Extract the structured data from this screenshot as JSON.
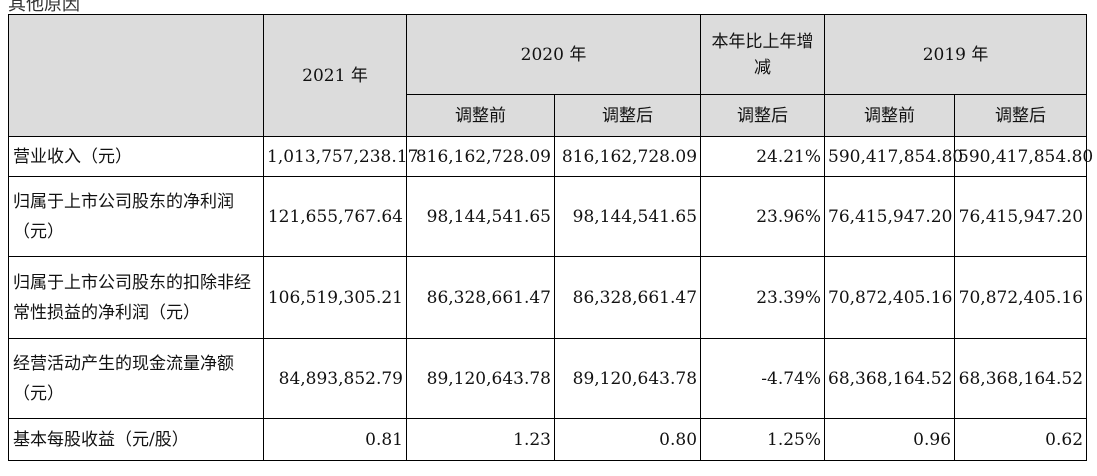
{
  "caption": "其他原因",
  "header": {
    "y2021": "2021 年",
    "y2020": "2020 年",
    "change": "本年比上年增减",
    "y2019": "2019 年",
    "before": "调整前",
    "after": "调整后"
  },
  "rows": [
    {
      "label": "营业收入（元）",
      "values": [
        "1,013,757,238.17",
        "816,162,728.09",
        "816,162,728.09",
        "24.21%",
        "590,417,854.80",
        "590,417,854.80"
      ]
    },
    {
      "label": "归属于上市公司股东的净利润（元）",
      "values": [
        "121,655,767.64",
        "98,144,541.65",
        "98,144,541.65",
        "23.96%",
        "76,415,947.20",
        "76,415,947.20"
      ]
    },
    {
      "label": "归属于上市公司股东的扣除非经常性损益的净利润（元）",
      "values": [
        "106,519,305.21",
        "86,328,661.47",
        "86,328,661.47",
        "23.39%",
        "70,872,405.16",
        "70,872,405.16"
      ]
    },
    {
      "label": "经营活动产生的现金流量净额（元）",
      "values": [
        "84,893,852.79",
        "89,120,643.78",
        "89,120,643.78",
        "-4.74%",
        "68,368,164.52",
        "68,368,164.52"
      ]
    },
    {
      "label": "基本每股收益（元/股）",
      "values": [
        "0.81",
        "1.23",
        "0.80",
        "1.25%",
        "0.96",
        "0.62"
      ]
    }
  ]
}
